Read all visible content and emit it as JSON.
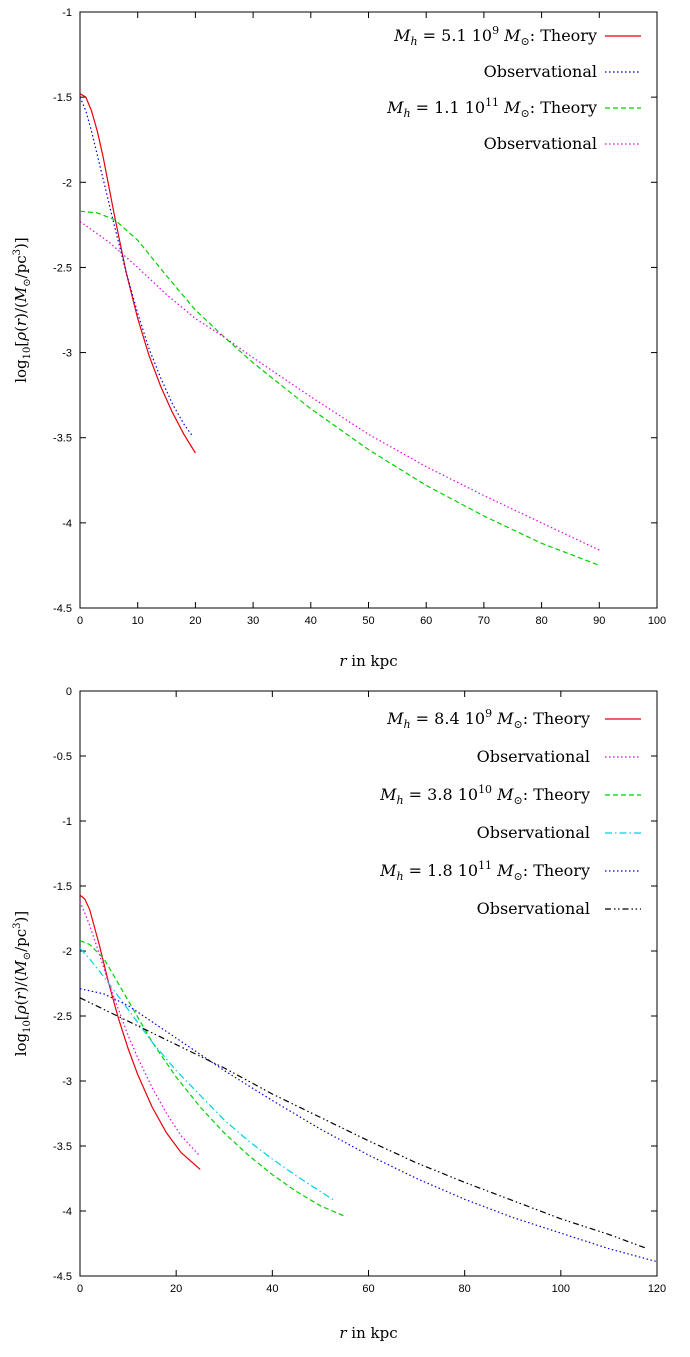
{
  "chart_data": [
    {
      "type": "line",
      "xlabel": "r in kpc",
      "ylabel": "log10[ρ(r)/(M⊙/pc³)]",
      "xlim": [
        0,
        100
      ],
      "ylim": [
        -4.5,
        -1
      ],
      "xticks": [
        0,
        10,
        20,
        30,
        40,
        50,
        60,
        70,
        80,
        90,
        100
      ],
      "yticks": [
        -4.5,
        -4,
        -3.5,
        -3,
        -2.5,
        -2,
        -1.5,
        -1
      ],
      "tick_labels_x": [
        "0",
        "10",
        "20",
        "30",
        "40",
        "50",
        "60",
        "70",
        "80",
        "90",
        "100"
      ],
      "tick_labels_y": [
        "-4.5",
        "-4",
        "-3.5",
        "-3",
        "-2.5",
        "-2",
        "-1.5",
        "-1"
      ],
      "grid": false,
      "legend_position": "top-right",
      "series": [
        {
          "name": "M_h = 5.1 10^9 M⊙: Theory",
          "color": "#e8000b",
          "dash": "solid",
          "x": [
            0,
            1,
            2,
            3,
            4,
            6,
            8,
            10,
            12,
            14,
            16,
            18,
            20
          ],
          "y": [
            -1.48,
            -1.5,
            -1.58,
            -1.7,
            -1.85,
            -2.2,
            -2.53,
            -2.8,
            -3.02,
            -3.2,
            -3.35,
            -3.48,
            -3.59
          ]
        },
        {
          "name": "Observational",
          "color": "#0000d8",
          "dash": "dotted",
          "x": [
            0,
            1,
            2,
            3,
            4,
            6,
            8,
            10,
            12,
            14,
            16,
            18,
            19.5
          ],
          "y": [
            -1.5,
            -1.58,
            -1.7,
            -1.84,
            -1.98,
            -2.26,
            -2.53,
            -2.77,
            -2.98,
            -3.15,
            -3.3,
            -3.42,
            -3.49
          ]
        },
        {
          "name": "M_h = 1.1 10^11 M⊙: Theory",
          "color": "#00d000",
          "dash": "dashed",
          "x": [
            0,
            3,
            6,
            10,
            15,
            20,
            25,
            30,
            40,
            50,
            60,
            70,
            80,
            90
          ],
          "y": [
            -2.17,
            -2.18,
            -2.22,
            -2.34,
            -2.55,
            -2.75,
            -2.91,
            -3.06,
            -3.33,
            -3.57,
            -3.78,
            -3.96,
            -4.12,
            -4.25
          ]
        },
        {
          "name": "Observational",
          "color": "#e000e0",
          "dash": "dotted",
          "x": [
            0,
            5,
            10,
            15,
            20,
            25,
            30,
            40,
            50,
            60,
            70,
            80,
            90
          ],
          "y": [
            -2.23,
            -2.35,
            -2.5,
            -2.66,
            -2.8,
            -2.91,
            -3.03,
            -3.26,
            -3.48,
            -3.67,
            -3.84,
            -4.0,
            -4.16
          ]
        }
      ]
    },
    {
      "type": "line",
      "xlabel": "r in kpc",
      "ylabel": "log10[ρ(r)/(M⊙/pc³)]",
      "xlim": [
        0,
        120
      ],
      "ylim": [
        -4.5,
        0
      ],
      "xticks": [
        0,
        20,
        40,
        60,
        80,
        100,
        120
      ],
      "yticks": [
        -4.5,
        -4,
        -3.5,
        -3,
        -2.5,
        -2,
        -1.5,
        -1,
        -0.5,
        0
      ],
      "tick_labels_x": [
        "0",
        "20",
        "40",
        "60",
        "80",
        "100",
        "120"
      ],
      "tick_labels_y": [
        "-4.5",
        "-4",
        "-3.5",
        "-3",
        "-2.5",
        "-2",
        "-1.5",
        "-1",
        "-0.5",
        "0"
      ],
      "grid": false,
      "legend_position": "top-right",
      "series": [
        {
          "name": "M_h = 8.4 10^9 M⊙: Theory",
          "color": "#e8000b",
          "dash": "solid",
          "x": [
            0,
            1,
            2,
            4,
            6,
            8,
            10,
            12,
            15,
            18,
            21,
            25
          ],
          "y": [
            -1.57,
            -1.6,
            -1.68,
            -1.95,
            -2.25,
            -2.52,
            -2.75,
            -2.95,
            -3.2,
            -3.4,
            -3.55,
            -3.68
          ]
        },
        {
          "name": "Observational",
          "color": "#e000e0",
          "dash": "dotted",
          "x": [
            0,
            2,
            4,
            6,
            8,
            10,
            12,
            15,
            18,
            21,
            25
          ],
          "y": [
            -1.62,
            -1.8,
            -2.02,
            -2.25,
            -2.45,
            -2.65,
            -2.82,
            -3.05,
            -3.25,
            -3.42,
            -3.58
          ]
        },
        {
          "name": "M_h = 3.8 10^10 M⊙: Theory",
          "color": "#00d000",
          "dash": "dashed",
          "x": [
            0,
            2,
            5,
            10,
            15,
            20,
            25,
            30,
            35,
            40,
            45,
            50,
            55
          ],
          "y": [
            -1.92,
            -1.95,
            -2.06,
            -2.38,
            -2.7,
            -2.97,
            -3.2,
            -3.4,
            -3.57,
            -3.72,
            -3.85,
            -3.96,
            -4.04
          ]
        },
        {
          "name": "Observational",
          "color": "#00d0e0",
          "dash": "dashdot",
          "x": [
            0,
            2,
            5,
            10,
            15,
            20,
            25,
            30,
            35,
            40,
            45,
            50,
            53
          ],
          "y": [
            -1.98,
            -2.06,
            -2.2,
            -2.45,
            -2.7,
            -2.92,
            -3.11,
            -3.3,
            -3.46,
            -3.6,
            -3.73,
            -3.85,
            -3.92
          ]
        },
        {
          "name": "M_h = 1.8 10^11 M⊙: Theory",
          "color": "#0000d8",
          "dash": "dotted",
          "x": [
            0,
            5,
            10,
            20,
            30,
            40,
            50,
            60,
            70,
            80,
            90,
            100,
            110,
            120
          ],
          "y": [
            -2.29,
            -2.33,
            -2.42,
            -2.67,
            -2.92,
            -3.15,
            -3.37,
            -3.57,
            -3.75,
            -3.91,
            -4.05,
            -4.17,
            -4.29,
            -4.39
          ]
        },
        {
          "name": "Observational",
          "color": "#000000",
          "dash": "dashdotdot",
          "x": [
            0,
            5,
            10,
            20,
            30,
            40,
            50,
            60,
            70,
            80,
            90,
            100,
            110,
            118
          ],
          "y": [
            -2.36,
            -2.45,
            -2.54,
            -2.72,
            -2.9,
            -3.1,
            -3.28,
            -3.46,
            -3.63,
            -3.78,
            -3.92,
            -4.06,
            -4.18,
            -4.29
          ]
        }
      ]
    }
  ]
}
